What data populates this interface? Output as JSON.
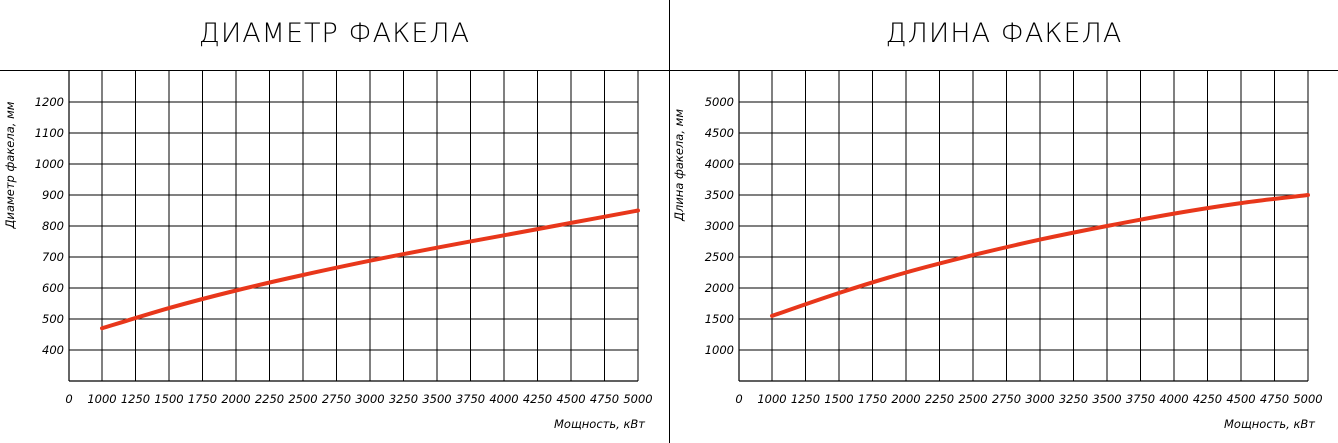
{
  "chart_data": [
    {
      "type": "line",
      "title": "ДИАМЕТР ФАКЕЛА",
      "xlabel": "Мощность, кВт",
      "ylabel": "Диаметр факела, мм",
      "x_ticks": [
        "0",
        "1000",
        "1250",
        "1500",
        "1750",
        "2000",
        "2250",
        "2500",
        "2750",
        "3000",
        "3250",
        "3500",
        "3750",
        "4000",
        "4250",
        "4500",
        "4750",
        "5000"
      ],
      "y_ticks": [
        "400",
        "500",
        "600",
        "700",
        "800",
        "900",
        "1000",
        "1100",
        "1200"
      ],
      "grid": true,
      "line_color": "#e8371b",
      "series": [
        {
          "x": [
            1000,
            1500,
            2000,
            2500,
            3000,
            3500,
            4000,
            4500,
            5000
          ],
          "y": [
            470,
            535,
            592,
            642,
            688,
            730,
            770,
            810,
            850
          ]
        }
      ]
    },
    {
      "type": "line",
      "title": "ДЛИНА ФАКЕЛА",
      "xlabel": "Мощность, кВт",
      "ylabel": "Длина факела, мм",
      "x_ticks": [
        "0",
        "1000",
        "1250",
        "1500",
        "1750",
        "2000",
        "2250",
        "2500",
        "2750",
        "3000",
        "3250",
        "3500",
        "3750",
        "4000",
        "4250",
        "4500",
        "4750",
        "5000"
      ],
      "y_ticks": [
        "1000",
        "1500",
        "2000",
        "2500",
        "3000",
        "3500",
        "4000",
        "4500",
        "5000"
      ],
      "grid": true,
      "line_color": "#e8371b",
      "series": [
        {
          "x": [
            1000,
            1500,
            2000,
            2500,
            3000,
            3500,
            4000,
            4500,
            5000
          ],
          "y": [
            1550,
            1920,
            2250,
            2530,
            2780,
            3000,
            3200,
            3370,
            3500
          ]
        }
      ]
    }
  ]
}
